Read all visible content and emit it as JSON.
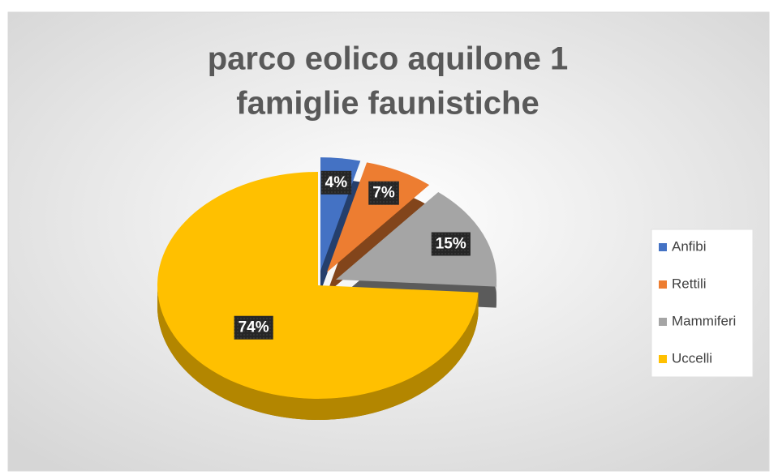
{
  "chart_data": {
    "type": "pie",
    "title": [
      "parco eolico aquilone 1",
      "famiglie faunistiche"
    ],
    "categories": [
      "Anfibi",
      "Rettili",
      "Mammiferi",
      "Uccelli"
    ],
    "values": [
      4,
      7,
      15,
      74
    ],
    "value_labels": [
      "4%",
      "7%",
      "15%",
      "74%"
    ],
    "colors": [
      "#4472c4",
      "#ed7d31",
      "#a5a5a5",
      "#ffc000"
    ],
    "legend": "right"
  }
}
